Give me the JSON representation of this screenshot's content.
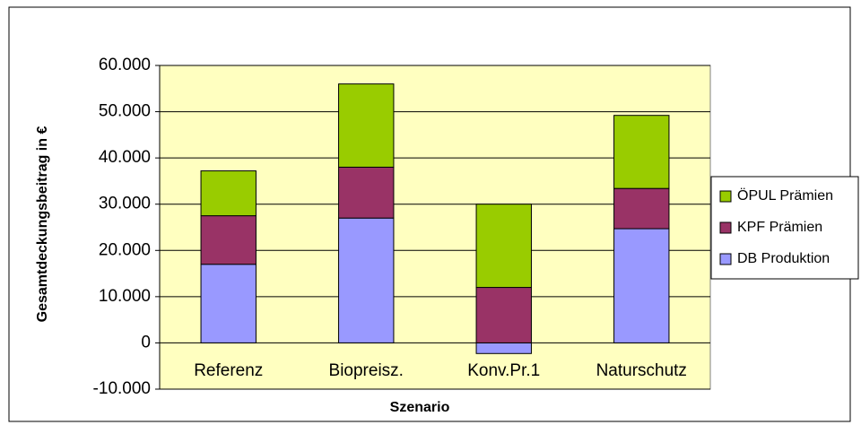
{
  "chart_data": {
    "type": "stacked_bar",
    "categories": [
      "Referenz",
      "Biopreisz.",
      "Konv.Pr.1",
      "Naturschutz"
    ],
    "series": [
      {
        "name": "DB Produktion",
        "color": "#9999ff",
        "values": [
          17000,
          27000,
          -2300,
          24700
        ]
      },
      {
        "name": "KPF Prämien",
        "color": "#993366",
        "values": [
          10500,
          11000,
          12000,
          8700
        ]
      },
      {
        "name": "ÖPUL Prämien",
        "color": "#99cc00",
        "values": [
          9700,
          18000,
          18000,
          15800
        ]
      }
    ],
    "x_label": "Szenario",
    "y_label": "Gesamtdeckungsbeitrag in €",
    "ylim": [
      -10000,
      60000
    ],
    "yticks": [
      {
        "value": -10000,
        "label": "-10.000"
      },
      0,
      {
        "value": 10000,
        "label": "10.000"
      },
      {
        "value": 20000,
        "label": "20.000"
      },
      {
        "value": 30000,
        "label": "30.000"
      },
      {
        "value": 40000,
        "label": "40.000"
      },
      {
        "value": 50000,
        "label": "50.000"
      },
      {
        "value": 60000,
        "label": "60.000"
      }
    ],
    "grid": true,
    "legend": "right",
    "plot_background": "#ffffc0"
  }
}
